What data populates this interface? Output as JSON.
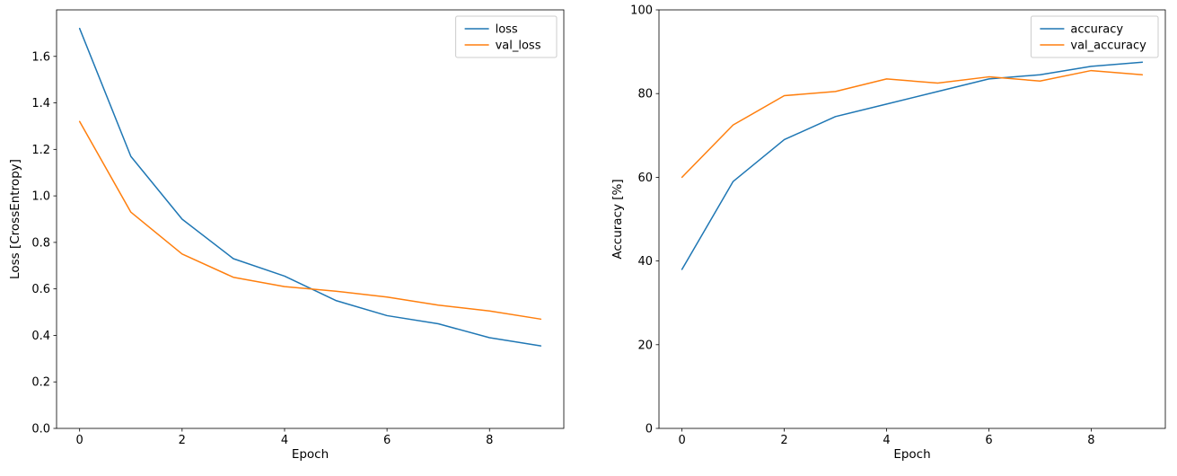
{
  "figure": {
    "background": "#ffffff",
    "series_colors": {
      "blue": "#1f77b4",
      "orange": "#ff7f0e"
    },
    "axis_color": "#000000",
    "legend_border_color": "#cccccc"
  },
  "chart_data": [
    {
      "type": "line",
      "title": "",
      "xlabel": "Epoch",
      "ylabel": "Loss [CrossEntropy]",
      "x": [
        0,
        1,
        2,
        3,
        4,
        5,
        6,
        7,
        8,
        9
      ],
      "series": [
        {
          "name": "loss",
          "color": "#1f77b4",
          "values": [
            1.72,
            1.17,
            0.9,
            0.73,
            0.655,
            0.55,
            0.485,
            0.45,
            0.39,
            0.355
          ]
        },
        {
          "name": "val_loss",
          "color": "#ff7f0e",
          "values": [
            1.32,
            0.93,
            0.75,
            0.65,
            0.61,
            0.59,
            0.565,
            0.53,
            0.505,
            0.47
          ]
        }
      ],
      "xlim": [
        -0.45,
        9.45
      ],
      "ylim": [
        0.0,
        1.8
      ],
      "xticks": [
        0,
        2,
        4,
        6,
        8
      ],
      "xtick_labels": [
        "0",
        "2",
        "4",
        "6",
        "8"
      ],
      "yticks": [
        0.0,
        0.2,
        0.4,
        0.6,
        0.8,
        1.0,
        1.2,
        1.4,
        1.6
      ],
      "ytick_labels": [
        "0.0",
        "0.2",
        "0.4",
        "0.6",
        "0.8",
        "1.0",
        "1.2",
        "1.4",
        "1.6"
      ],
      "legend": {
        "position": "top-right",
        "entries": [
          "loss",
          "val_loss"
        ]
      },
      "grid": false
    },
    {
      "type": "line",
      "title": "",
      "xlabel": "Epoch",
      "ylabel": "Accuracy [%]",
      "x": [
        0,
        1,
        2,
        3,
        4,
        5,
        6,
        7,
        8,
        9
      ],
      "series": [
        {
          "name": "accuracy",
          "color": "#1f77b4",
          "values": [
            38,
            59,
            69,
            74.5,
            77.5,
            80.5,
            83.5,
            84.5,
            86.5,
            87.5
          ]
        },
        {
          "name": "val_accuracy",
          "color": "#ff7f0e",
          "values": [
            60,
            72.5,
            79.5,
            80.5,
            83.5,
            82.5,
            84,
            83,
            85.5,
            84.5
          ]
        }
      ],
      "xlim": [
        -0.45,
        9.45
      ],
      "ylim": [
        0,
        100
      ],
      "xticks": [
        0,
        2,
        4,
        6,
        8
      ],
      "xtick_labels": [
        "0",
        "2",
        "4",
        "6",
        "8"
      ],
      "yticks": [
        0,
        20,
        40,
        60,
        80,
        100
      ],
      "ytick_labels": [
        "0",
        "20",
        "40",
        "60",
        "80",
        "100"
      ],
      "legend": {
        "position": "top-right",
        "entries": [
          "accuracy",
          "val_accuracy"
        ]
      },
      "grid": false
    }
  ]
}
